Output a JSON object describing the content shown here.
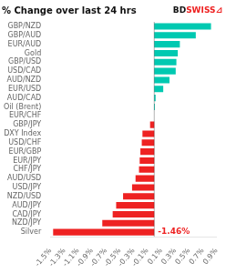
{
  "chart_data": {
    "type": "bar",
    "orientation": "horizontal",
    "title": "% Change over last 24 hrs",
    "categories": [
      "GBP/NZD",
      "GBP/AUD",
      "EUR/AUD",
      "Gold",
      "GBP/USD",
      "USD/CAD",
      "AUD/NZD",
      "EUR/USD",
      "AUD/CAD",
      "Oil (Brent)",
      "EUR/CHF",
      "GBP/JPY",
      "DXY Index",
      "USD/CHF",
      "EUR/GBP",
      "EUR/JPY",
      "CHF/JPY",
      "AUD/USD",
      "USD/JPY",
      "NZD/USD",
      "AUD/JPY",
      "CAD/JPY",
      "NZD/JPY",
      "Silver"
    ],
    "values": [
      0.82,
      0.6,
      0.37,
      0.34,
      0.32,
      0.31,
      0.22,
      0.13,
      0.02,
      0.01,
      0.0,
      -0.06,
      -0.17,
      -0.18,
      -0.2,
      -0.21,
      -0.22,
      -0.27,
      -0.32,
      -0.45,
      -0.55,
      -0.6,
      -0.75,
      -1.46
    ],
    "colors": [
      "#00C9B1",
      "#00C9B1",
      "#00C9B1",
      "#00C9B1",
      "#00C9B1",
      "#00C9B1",
      "#00C9B1",
      "#00C9B1",
      "#00C9B1",
      "#00C9B1",
      "#00C9B1",
      "#EE2222",
      "#EE2222",
      "#EE2222",
      "#EE2222",
      "#EE2222",
      "#EE2222",
      "#EE2222",
      "#EE2222",
      "#EE2222",
      "#EE2222",
      "#EE2222",
      "#EE2222",
      "#EE2222"
    ],
    "xlim": [
      -1.5,
      0.9
    ],
    "xticks": [
      {
        "value": -1.5,
        "label": "-1.5%"
      },
      {
        "value": -1.3,
        "label": "-1.3%"
      },
      {
        "value": -1.1,
        "label": "-1.1%"
      },
      {
        "value": -0.9,
        "label": "-0.9%"
      },
      {
        "value": -0.7,
        "label": "-0.7%"
      },
      {
        "value": -0.5,
        "label": "-0.5%"
      },
      {
        "value": -0.3,
        "label": "-0.3%"
      },
      {
        "value": -0.1,
        "label": "-0.1%"
      },
      {
        "value": 0.1,
        "label": "0.1%"
      },
      {
        "value": 0.3,
        "label": "0.3%"
      },
      {
        "value": 0.5,
        "label": "0.5%"
      },
      {
        "value": 0.7,
        "label": "0.7%"
      },
      {
        "value": 0.9,
        "label": "0.9%"
      }
    ],
    "grid": false,
    "annotations": [
      {
        "text": "-1.46%",
        "category": "Silver",
        "color": "#EE2222"
      },
      {
        "text": "BD",
        "color": "#111111"
      },
      {
        "text": "SWISS",
        "color": "#EE2222"
      },
      {
        "text": "⊿",
        "color": "#EE2222"
      }
    ]
  }
}
